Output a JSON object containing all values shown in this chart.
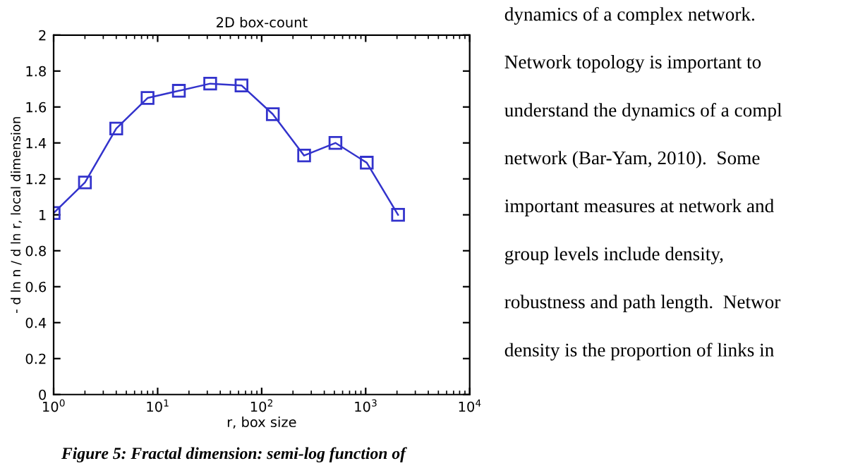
{
  "chart_data": {
    "type": "line",
    "title": "2D box-count",
    "xlabel": "r, box size",
    "ylabel": "- d ln n / d ln r, local dimension",
    "x": [
      1,
      2,
      4,
      8,
      16,
      32,
      64,
      128,
      256,
      512,
      1024,
      2048
    ],
    "series": [
      {
        "color": "#3333cc",
        "values": [
          1.01,
          1.18,
          1.48,
          1.65,
          1.69,
          1.73,
          1.72,
          1.56,
          1.33,
          1.4,
          1.29,
          1.0
        ]
      }
    ],
    "log": "x",
    "xlim": [
      1,
      10000
    ],
    "xticks": [
      {
        "value": 1,
        "label": "10$^{0}$"
      },
      {
        "value": 10,
        "label": "10$^{1}$"
      },
      {
        "value": 100,
        "label": "10$^{2}$"
      },
      {
        "value": 1000,
        "label": "10$^{3}$"
      },
      {
        "value": 10000,
        "label": "10$^{4}$"
      }
    ],
    "ylim": [
      0,
      2
    ],
    "yticks": [
      0,
      0.2,
      0.4,
      0.6,
      0.8,
      1,
      1.2,
      1.4,
      1.6,
      1.8,
      2
    ],
    "grid": false,
    "marker": "square",
    "line_style": "solid",
    "annotations": [
      "Figure 5: Fractal dimension: semi-log function of",
      "dynamics of a complex network.",
      "Network topology is important to",
      "understand the dynamics of a compl",
      "network (Bar-Yam, 2010).  Some",
      "important measures at network and",
      "group levels include density,",
      "robustness and path length.  Networ",
      "density is the proportion of links in"
    ]
  }
}
